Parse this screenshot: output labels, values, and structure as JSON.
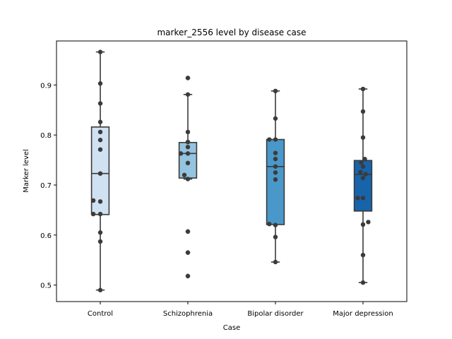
{
  "chart_data": {
    "type": "box",
    "title": "marker_2556 level by disease case",
    "xlabel": "Case",
    "ylabel": "Marker level",
    "ylim": [
      0.467,
      0.988
    ],
    "yticks": [
      0.5,
      0.6,
      0.7,
      0.8,
      0.9
    ],
    "ytick_labels": [
      "0.5",
      "0.6",
      "0.7",
      "0.8",
      "0.9"
    ],
    "grid": false,
    "categories": [
      "Control",
      "Schizophrenia",
      "Bipolar disorder",
      "Major depression"
    ],
    "colors": [
      "#d0e1f2",
      "#94c4df",
      "#4a98c9",
      "#1764ab"
    ],
    "point_color": "#3b3b3b",
    "line_color": "#3a3a3a",
    "boxes": [
      {
        "q1": 0.641,
        "median": 0.723,
        "q3": 0.816,
        "whisker_low": 0.49,
        "whisker_high": 0.966,
        "fliers": []
      },
      {
        "q1": 0.714,
        "median": 0.763,
        "q3": 0.785,
        "whisker_low": 0.712,
        "whisker_high": 0.881,
        "fliers": [
          0.914,
          0.607,
          0.565,
          0.518
        ]
      },
      {
        "q1": 0.621,
        "median": 0.737,
        "q3": 0.791,
        "whisker_low": 0.546,
        "whisker_high": 0.888,
        "fliers": []
      },
      {
        "q1": 0.648,
        "median": 0.721,
        "q3": 0.749,
        "whisker_low": 0.505,
        "whisker_high": 0.892,
        "fliers": []
      }
    ],
    "points": [
      [
        {
          "y": 0.966,
          "dx": 0.0
        },
        {
          "y": 0.903,
          "dx": 0.0
        },
        {
          "y": 0.863,
          "dx": 0.0
        },
        {
          "y": 0.826,
          "dx": 0.0
        },
        {
          "y": 0.806,
          "dx": 0.0
        },
        {
          "y": 0.79,
          "dx": 0.0
        },
        {
          "y": 0.771,
          "dx": 0.0
        },
        {
          "y": 0.723,
          "dx": 0.0
        },
        {
          "y": 0.669,
          "dx": -0.08
        },
        {
          "y": 0.667,
          "dx": 0.0
        },
        {
          "y": 0.642,
          "dx": -0.08
        },
        {
          "y": 0.642,
          "dx": 0.0
        },
        {
          "y": 0.605,
          "dx": 0.0
        },
        {
          "y": 0.587,
          "dx": 0.0
        },
        {
          "y": 0.49,
          "dx": 0.0
        }
      ],
      [
        {
          "y": 0.914,
          "dx": 0.0
        },
        {
          "y": 0.881,
          "dx": 0.0
        },
        {
          "y": 0.806,
          "dx": 0.0
        },
        {
          "y": 0.786,
          "dx": 0.0
        },
        {
          "y": 0.776,
          "dx": 0.0
        },
        {
          "y": 0.763,
          "dx": -0.08
        },
        {
          "y": 0.763,
          "dx": 0.0
        },
        {
          "y": 0.744,
          "dx": 0.0
        },
        {
          "y": 0.72,
          "dx": -0.04
        },
        {
          "y": 0.712,
          "dx": 0.0
        },
        {
          "y": 0.607,
          "dx": 0.0
        },
        {
          "y": 0.565,
          "dx": 0.0
        },
        {
          "y": 0.518,
          "dx": 0.0
        }
      ],
      [
        {
          "y": 0.888,
          "dx": 0.0
        },
        {
          "y": 0.833,
          "dx": 0.0
        },
        {
          "y": 0.791,
          "dx": -0.07
        },
        {
          "y": 0.791,
          "dx": 0.0
        },
        {
          "y": 0.752,
          "dx": 0.0
        },
        {
          "y": 0.764,
          "dx": 0.0
        },
        {
          "y": 0.737,
          "dx": 0.0
        },
        {
          "y": 0.725,
          "dx": 0.0
        },
        {
          "y": 0.711,
          "dx": 0.0
        },
        {
          "y": 0.622,
          "dx": -0.07
        },
        {
          "y": 0.62,
          "dx": 0.0
        },
        {
          "y": 0.596,
          "dx": 0.0
        },
        {
          "y": 0.546,
          "dx": 0.0
        }
      ],
      [
        {
          "y": 0.892,
          "dx": 0.0
        },
        {
          "y": 0.847,
          "dx": 0.0
        },
        {
          "y": 0.795,
          "dx": 0.0
        },
        {
          "y": 0.752,
          "dx": 0.02
        },
        {
          "y": 0.745,
          "dx": -0.02
        },
        {
          "y": 0.737,
          "dx": 0.0
        },
        {
          "y": 0.726,
          "dx": -0.03
        },
        {
          "y": 0.722,
          "dx": 0.03
        },
        {
          "y": 0.714,
          "dx": 0.0
        },
        {
          "y": 0.674,
          "dx": -0.06
        },
        {
          "y": 0.674,
          "dx": 0.0
        },
        {
          "y": 0.626,
          "dx": 0.06
        },
        {
          "y": 0.621,
          "dx": 0.0
        },
        {
          "y": 0.56,
          "dx": 0.0
        },
        {
          "y": 0.505,
          "dx": 0.0
        }
      ]
    ]
  }
}
